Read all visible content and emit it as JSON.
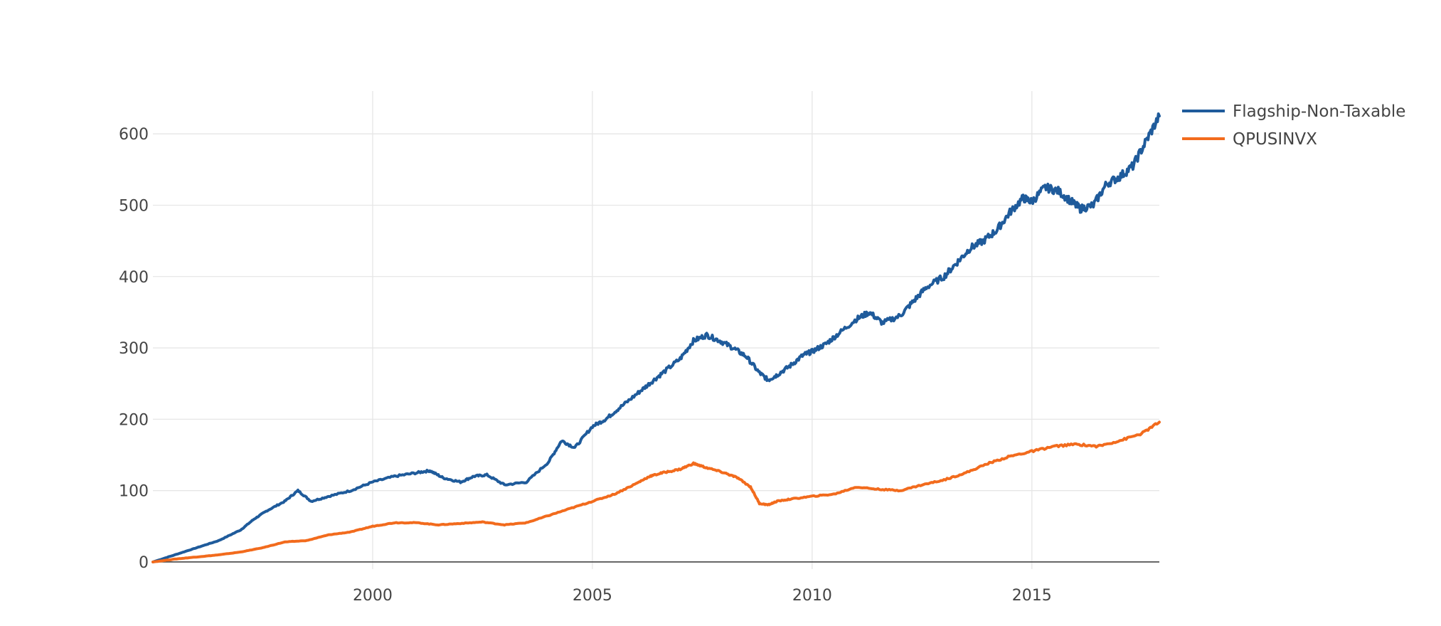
{
  "chart_data": {
    "type": "line",
    "title": "",
    "xlabel": "",
    "ylabel": "",
    "xlim": [
      1995.0,
      2017.9
    ],
    "ylim": [
      -10,
      660
    ],
    "x_ticks": [
      2000,
      2005,
      2010,
      2015
    ],
    "x_tick_labels": [
      "2000",
      "2005",
      "2010",
      "2015"
    ],
    "y_ticks": [
      0,
      100,
      200,
      300,
      400,
      500,
      600
    ],
    "y_tick_labels": [
      "0",
      "100",
      "200",
      "300",
      "400",
      "500",
      "600"
    ],
    "grid": true,
    "legend": {
      "placement": "top-right"
    },
    "series": [
      {
        "name": "Flagship-Non-Taxable",
        "color": "#1f5b9b",
        "x": [
          1995.0,
          1995.5,
          1996.0,
          1996.5,
          1997.0,
          1997.3,
          1997.6,
          1998.0,
          1998.3,
          1998.6,
          1999.0,
          1999.5,
          2000.0,
          2000.5,
          2001.0,
          2001.3,
          2001.6,
          2002.0,
          2002.3,
          2002.6,
          2003.0,
          2003.5,
          2004.0,
          2004.3,
          2004.6,
          2005.0,
          2005.3,
          2005.6,
          2006.0,
          2006.3,
          2006.6,
          2007.0,
          2007.3,
          2007.6,
          2007.9,
          2008.2,
          2008.5,
          2008.8,
          2009.0,
          2009.2,
          2009.5,
          2009.8,
          2010.0,
          2010.3,
          2010.6,
          2011.0,
          2011.3,
          2011.6,
          2012.0,
          2012.3,
          2012.6,
          2013.0,
          2013.3,
          2013.6,
          2013.9,
          2014.2,
          2014.5,
          2014.8,
          2015.0,
          2015.3,
          2015.6,
          2015.9,
          2016.1,
          2016.4,
          2016.7,
          2017.0,
          2017.3,
          2017.6,
          2017.9
        ],
        "values": [
          0,
          10,
          20,
          30,
          45,
          60,
          72,
          85,
          100,
          85,
          92,
          100,
          112,
          120,
          125,
          128,
          118,
          112,
          120,
          122,
          108,
          112,
          140,
          170,
          160,
          190,
          200,
          215,
          235,
          250,
          265,
          285,
          310,
          318,
          310,
          300,
          288,
          265,
          255,
          262,
          275,
          290,
          295,
          305,
          320,
          340,
          350,
          335,
          345,
          365,
          385,
          400,
          420,
          440,
          450,
          465,
          490,
          510,
          505,
          525,
          520,
          505,
          495,
          500,
          530,
          540,
          555,
          590,
          625
        ]
      },
      {
        "name": "QPUSINVX",
        "color": "#f26b1d",
        "x": [
          1995.0,
          1995.5,
          1996.0,
          1996.5,
          1997.0,
          1997.5,
          1998.0,
          1998.5,
          1999.0,
          1999.5,
          2000.0,
          2000.5,
          2001.0,
          2001.5,
          2002.0,
          2002.5,
          2003.0,
          2003.5,
          2004.0,
          2004.5,
          2005.0,
          2005.5,
          2006.0,
          2006.3,
          2006.6,
          2007.0,
          2007.3,
          2007.6,
          2008.0,
          2008.3,
          2008.6,
          2008.8,
          2009.0,
          2009.2,
          2009.5,
          2010.0,
          2010.5,
          2011.0,
          2011.5,
          2012.0,
          2012.5,
          2013.0,
          2013.5,
          2014.0,
          2014.5,
          2015.0,
          2015.5,
          2016.0,
          2016.5,
          2017.0,
          2017.5,
          2017.9
        ],
        "values": [
          0,
          4,
          7,
          10,
          14,
          20,
          28,
          30,
          38,
          42,
          50,
          55,
          55,
          52,
          54,
          56,
          52,
          55,
          65,
          75,
          85,
          95,
          110,
          120,
          125,
          130,
          138,
          132,
          125,
          118,
          105,
          82,
          80,
          85,
          88,
          92,
          95,
          105,
          102,
          100,
          108,
          115,
          125,
          138,
          148,
          155,
          162,
          165,
          162,
          170,
          180,
          196
        ]
      }
    ]
  }
}
